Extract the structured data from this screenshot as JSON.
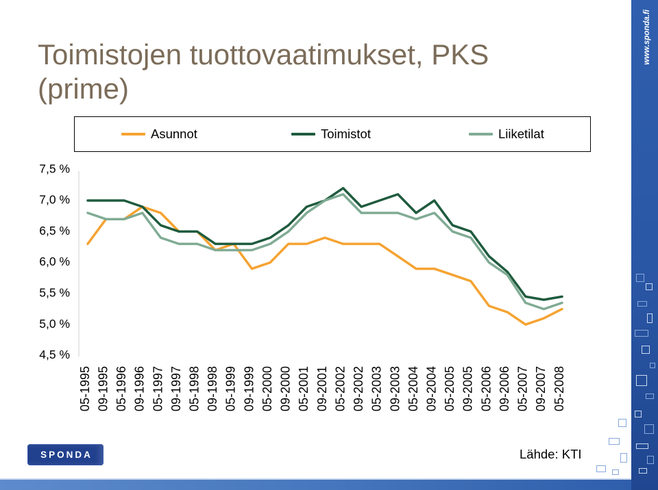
{
  "slide": {
    "logo_text": "SPONDA",
    "website": "www.sponda.fi",
    "source_note": "Lähde: KTI"
  },
  "colors": {
    "title": "#7b6c59",
    "brand_blue": "#21408e"
  },
  "chart_data": {
    "type": "line",
    "title": "Toimistojen tuottovaatimukset, PKS (prime)",
    "ylim": [
      4.5,
      7.5
    ],
    "yticks": [
      7.5,
      7.0,
      6.5,
      6.0,
      5.5,
      5.0,
      4.5
    ],
    "ytick_labels": [
      "7,5 %",
      "7,0 %",
      "6,5 %",
      "6,0 %",
      "5,5 %",
      "5,0 %",
      "4,5 %"
    ],
    "grid": false,
    "legend_position": "top",
    "categories": [
      "05-1995",
      "09-1995",
      "05-1996",
      "09-1996",
      "05-1997",
      "09-1997",
      "05-1998",
      "09-1998",
      "05-1999",
      "09-1999",
      "05-2000",
      "09-2000",
      "05-2001",
      "09-2001",
      "05-2002",
      "09-2002",
      "05-2003",
      "09-2003",
      "05-2004",
      "09-2004",
      "05-2005",
      "09-2005",
      "05-2006",
      "09-2006",
      "05-2007",
      "09-2007",
      "05-2008"
    ],
    "series": [
      {
        "name": "Asunnot",
        "color": "#f5a332",
        "values": [
          6.3,
          6.7,
          6.7,
          6.9,
          6.8,
          6.5,
          6.5,
          6.2,
          6.3,
          5.9,
          6.0,
          6.3,
          6.3,
          6.4,
          6.3,
          6.3,
          6.3,
          6.1,
          5.9,
          5.9,
          5.8,
          5.7,
          5.3,
          5.2,
          5.0,
          5.1,
          5.25
        ]
      },
      {
        "name": "Toimistot",
        "color": "#1f5b3e",
        "values": [
          7.0,
          7.0,
          7.0,
          6.9,
          6.6,
          6.5,
          6.5,
          6.3,
          6.3,
          6.3,
          6.4,
          6.6,
          6.9,
          7.0,
          7.2,
          6.9,
          7.0,
          7.1,
          6.8,
          7.0,
          6.6,
          6.5,
          6.1,
          5.85,
          5.45,
          5.4,
          5.45
        ]
      },
      {
        "name": "Liiketilat",
        "color": "#80ab94",
        "values": [
          6.8,
          6.7,
          6.7,
          6.8,
          6.4,
          6.3,
          6.3,
          6.2,
          6.2,
          6.2,
          6.3,
          6.5,
          6.8,
          7.0,
          7.1,
          6.8,
          6.8,
          6.8,
          6.7,
          6.8,
          6.5,
          6.4,
          6.0,
          5.8,
          5.35,
          5.25,
          5.35
        ]
      }
    ]
  }
}
